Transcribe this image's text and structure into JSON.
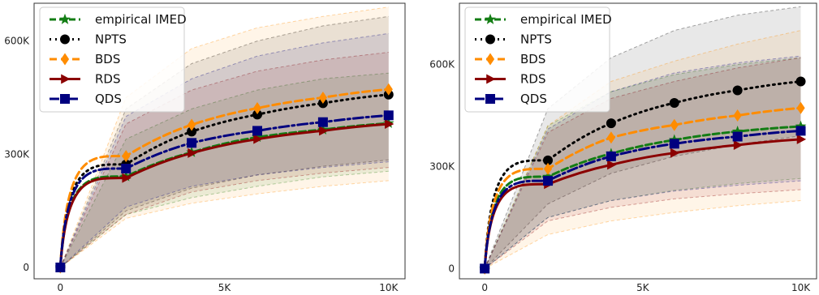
{
  "chart_data": [
    {
      "type": "line",
      "xlim": [
        -800,
        10500
      ],
      "ylim": [
        -30000,
        700000
      ],
      "x": [
        0,
        2000,
        4000,
        6000,
        8000,
        10000
      ],
      "x_ticks": [
        0,
        5000,
        10000
      ],
      "x_tick_labels": [
        "0",
        "5K",
        "10K"
      ],
      "y_ticks": [
        0,
        300000,
        600000
      ],
      "y_tick_labels": [
        "0",
        "300K",
        "600K"
      ],
      "grid": false,
      "legend_position": "top-left",
      "series": [
        {
          "name": "empirical IMED",
          "color": "#137d14",
          "dash": "8,4",
          "marker": "star",
          "values": [
            0,
            241000,
            305000,
            345000,
            365000,
            382000
          ],
          "band_lower": [
            0,
            140000,
            185000,
            215000,
            240000,
            255000
          ],
          "band_upper": [
            0,
            340000,
            420000,
            470000,
            500000,
            515000
          ]
        },
        {
          "name": "NPTS",
          "color": "#000000",
          "dash": "2,5",
          "marker": "circle",
          "values": [
            0,
            273000,
            360000,
            405000,
            435000,
            458000
          ],
          "band_lower": [
            0,
            150000,
            210000,
            245000,
            268000,
            285000
          ],
          "band_upper": [
            0,
            420000,
            540000,
            600000,
            640000,
            665000
          ]
        },
        {
          "name": "BDS",
          "color": "#ff8c00",
          "dash": "9,5",
          "marker": "diamond",
          "values": [
            0,
            295000,
            378000,
            422000,
            450000,
            472000
          ],
          "band_lower": [
            0,
            130000,
            170000,
            195000,
            215000,
            230000
          ],
          "band_upper": [
            0,
            450000,
            580000,
            635000,
            665000,
            690000
          ]
        },
        {
          "name": "RDS",
          "color": "#8b0000",
          "dash": "",
          "marker": "triangle-right",
          "values": [
            0,
            237000,
            303000,
            340000,
            362000,
            380000
          ],
          "band_lower": [
            0,
            140000,
            200000,
            230000,
            250000,
            265000
          ],
          "band_upper": [
            0,
            380000,
            470000,
            520000,
            550000,
            570000
          ]
        },
        {
          "name": "QDS",
          "color": "#00007f",
          "dash": "12,4,3,4",
          "marker": "square",
          "values": [
            0,
            262000,
            330000,
            362000,
            385000,
            403000
          ],
          "band_lower": [
            0,
            160000,
            215000,
            245000,
            265000,
            280000
          ],
          "band_upper": [
            0,
            400000,
            500000,
            560000,
            595000,
            620000
          ]
        }
      ]
    },
    {
      "type": "line",
      "xlim": [
        -800,
        10500
      ],
      "ylim": [
        -30000,
        780000
      ],
      "x": [
        0,
        2000,
        4000,
        6000,
        8000,
        10000
      ],
      "x_ticks": [
        0,
        5000,
        10000
      ],
      "x_tick_labels": [
        "0",
        "5K",
        "10K"
      ],
      "y_ticks": [
        0,
        300000,
        600000
      ],
      "y_tick_labels": [
        "0",
        "300K",
        "600K"
      ],
      "grid": false,
      "legend_position": "top-left",
      "series": [
        {
          "name": "empirical IMED",
          "color": "#137d14",
          "dash": "8,4",
          "marker": "star",
          "values": [
            0,
            270000,
            338000,
            378000,
            403000,
            418000
          ],
          "band_lower": [
            0,
            150000,
            200000,
            230000,
            250000,
            265000
          ],
          "band_upper": [
            0,
            420000,
            520000,
            570000,
            600000,
            620000
          ]
        },
        {
          "name": "NPTS",
          "color": "#000000",
          "dash": "2,5",
          "marker": "circle",
          "values": [
            0,
            318000,
            427000,
            487000,
            524000,
            550000
          ],
          "band_lower": [
            0,
            190000,
            280000,
            330000,
            365000,
            390000
          ],
          "band_upper": [
            0,
            470000,
            620000,
            700000,
            745000,
            770000
          ]
        },
        {
          "name": "BDS",
          "color": "#ff8c00",
          "dash": "9,5",
          "marker": "diamond",
          "values": [
            0,
            293000,
            385000,
            422000,
            450000,
            472000
          ],
          "band_lower": [
            0,
            100000,
            140000,
            165000,
            185000,
            200000
          ],
          "band_upper": [
            0,
            420000,
            550000,
            610000,
            660000,
            700000
          ]
        },
        {
          "name": "RDS",
          "color": "#8b0000",
          "dash": "",
          "marker": "triangle-right",
          "values": [
            0,
            248000,
            305000,
            340000,
            363000,
            380000
          ],
          "band_lower": [
            0,
            140000,
            180000,
            205000,
            220000,
            232000
          ],
          "band_upper": [
            0,
            400000,
            500000,
            550000,
            590000,
            620000
          ]
        },
        {
          "name": "QDS",
          "color": "#00007f",
          "dash": "12,4,3,4",
          "marker": "square",
          "values": [
            0,
            258000,
            330000,
            367000,
            388000,
            405000
          ],
          "band_lower": [
            0,
            150000,
            200000,
            228000,
            245000,
            258000
          ],
          "band_upper": [
            0,
            410000,
            520000,
            575000,
            605000,
            625000
          ]
        }
      ]
    }
  ]
}
